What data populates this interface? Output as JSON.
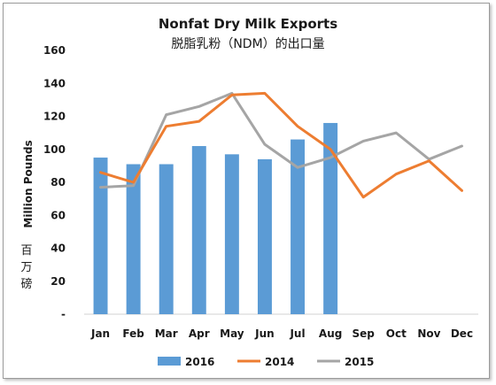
{
  "chart_data": {
    "type": "bar+line",
    "title": "Nonfat Dry Milk Exports",
    "subtitle": "脱脂乳粉（NDM）的出口量",
    "ylabel": "Million Pounds",
    "ylabel_cn": [
      "百",
      "万",
      "磅"
    ],
    "xlabel": "",
    "categories": [
      "Jan",
      "Feb",
      "Mar",
      "Apr",
      "May",
      "Jun",
      "Jul",
      "Aug",
      "Sep",
      "Oct",
      "Nov",
      "Dec"
    ],
    "ylim": [
      0,
      160
    ],
    "yticks": [
      {
        "value": 0,
        "label": "-"
      },
      {
        "value": 20,
        "label": "20"
      },
      {
        "value": 40,
        "label": "40"
      },
      {
        "value": 60,
        "label": "60"
      },
      {
        "value": 80,
        "label": "80"
      },
      {
        "value": 100,
        "label": "100"
      },
      {
        "value": 120,
        "label": "120"
      },
      {
        "value": 140,
        "label": "140"
      },
      {
        "value": 160,
        "label": "160"
      }
    ],
    "grid": false,
    "legend_position": "bottom",
    "series": [
      {
        "name": "2016",
        "kind": "bar",
        "color": "#5b9bd5",
        "values": [
          95,
          91,
          91,
          102,
          97,
          94,
          106,
          116,
          null,
          null,
          null,
          null
        ]
      },
      {
        "name": "2014",
        "kind": "line",
        "color": "#ed7d31",
        "values": [
          86,
          80,
          114,
          117,
          133,
          134,
          114,
          100,
          71,
          85,
          93,
          75
        ]
      },
      {
        "name": "2015",
        "kind": "line",
        "color": "#a5a5a5",
        "values": [
          77,
          78,
          121,
          126,
          134,
          103,
          89,
          95,
          105,
          110,
          94,
          102
        ]
      }
    ]
  }
}
